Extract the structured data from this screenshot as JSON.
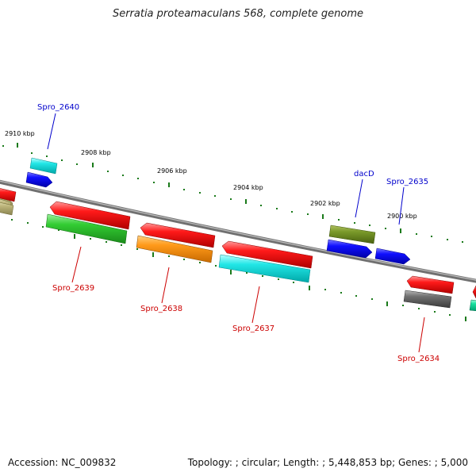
{
  "title": "Serratia proteamaculans 568, complete genome",
  "accession": {
    "label": "Accession:",
    "value": "NC_009832"
  },
  "topology": {
    "label": "Topology:",
    "value": "circular"
  },
  "length": {
    "label": "Length:",
    "value": "5,448,853 bp"
  },
  "genes": {
    "label": "Genes:",
    "value": "5,000"
  },
  "ticks": [
    {
      "kbp": 2910,
      "label": "2910 kbp"
    },
    {
      "kbp": 2908,
      "label": "2908 kbp"
    },
    {
      "kbp": 2906,
      "label": "2906 kbp"
    },
    {
      "kbp": 2904,
      "label": "2904 kbp"
    },
    {
      "kbp": 2902,
      "label": "2902 kbp"
    },
    {
      "kbp": 2900,
      "label": "2900 kbp"
    }
  ],
  "genes_shown": [
    {
      "name": "Spro_2640",
      "strand": "+",
      "color": "#0000cc"
    },
    {
      "name": "Spro_2639",
      "strand": "-",
      "color": "#cc0000"
    },
    {
      "name": "Spro_2638",
      "strand": "-",
      "color": "#cc0000"
    },
    {
      "name": "Spro_2637",
      "strand": "-",
      "color": "#cc0000"
    },
    {
      "name": "dacD",
      "strand": "+",
      "color": "#0000cc"
    },
    {
      "name": "Spro_2635",
      "strand": "+",
      "color": "#0000cc"
    },
    {
      "name": "Spro_2634",
      "strand": "-",
      "color": "#cc0000"
    }
  ]
}
